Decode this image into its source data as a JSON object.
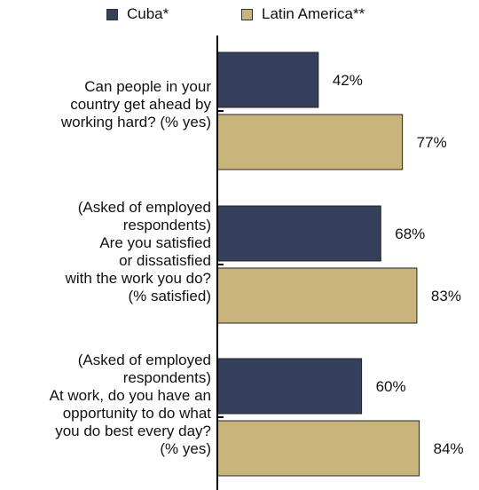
{
  "chart_data": {
    "type": "bar",
    "orientation": "horizontal",
    "categories": [
      "Can people in your\ncountry get ahead by\nworking hard? (% yes)",
      "(Asked of employed\nrespondents)\nAre you satisfied\nor dissatisfied\nwith the work you do?\n(% satisfied)",
      "(Asked of employed\nrespondents)\nAt work, do you have an\nopportunity to do what\nyou do best every day?\n(% yes)"
    ],
    "series": [
      {
        "name": "Cuba*",
        "values": [
          42,
          68,
          60
        ],
        "labels": [
          "42%",
          "68%",
          "60%"
        ]
      },
      {
        "name": "Latin America**",
        "values": [
          77,
          83,
          84
        ],
        "labels": [
          "77%",
          "83%",
          "84%"
        ]
      }
    ],
    "xlim": [
      0,
      100
    ],
    "grid": false,
    "legend_position": "top"
  },
  "colors": {
    "cuba": "#34405c",
    "latin_america": "#c9b57c",
    "axis": "#000000"
  }
}
